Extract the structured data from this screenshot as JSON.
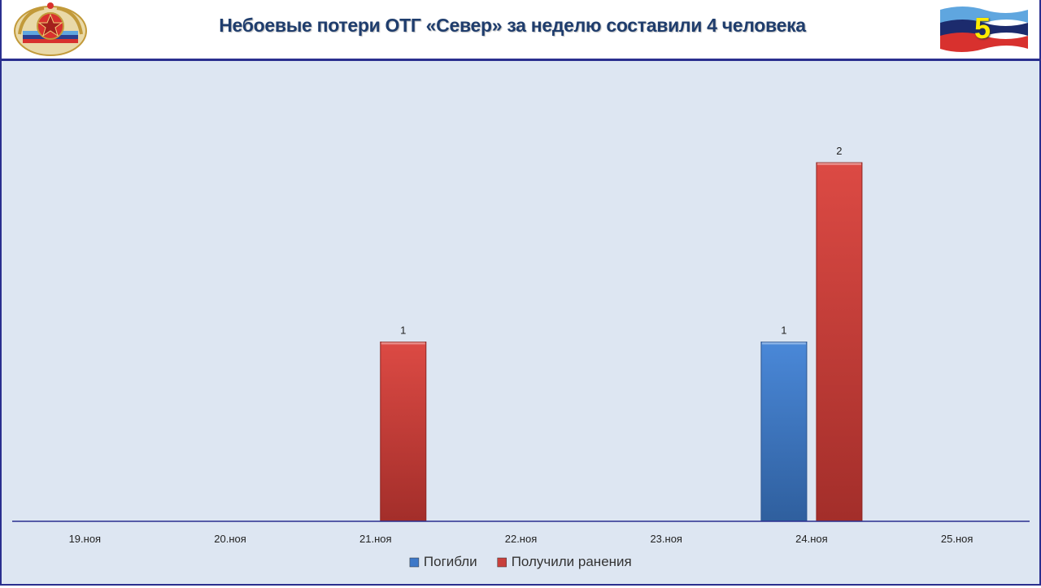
{
  "header": {
    "title": "Небоевые потери ОТГ «Север» за неделю составили 4 человека",
    "page_number": "5"
  },
  "colors": {
    "accent": "#2a2f8f",
    "title": "#1f3d6d",
    "plot_bg": "#dde6f2",
    "killed": "#3d78c8",
    "wounded": "#c8403c",
    "page_number": "#ffeb00"
  },
  "icons": {
    "emblem": "lpr-emblem-icon",
    "flag": "lpr-flag-icon"
  },
  "chart_data": {
    "type": "bar",
    "title": "",
    "xlabel": "",
    "ylabel": "",
    "categories": [
      "19.ноя",
      "20.ноя",
      "21.ноя",
      "22.ноя",
      "23.ноя",
      "24.ноя",
      "25.ноя"
    ],
    "series": [
      {
        "name": "Погибли",
        "values": [
          0,
          0,
          0,
          0,
          0,
          1,
          0
        ]
      },
      {
        "name": "Получили ранения",
        "values": [
          0,
          0,
          1,
          0,
          0,
          2,
          0
        ]
      }
    ],
    "ylim": [
      0,
      2
    ],
    "grid": false,
    "legend": "bottom",
    "data_labels": "nonzero only"
  }
}
